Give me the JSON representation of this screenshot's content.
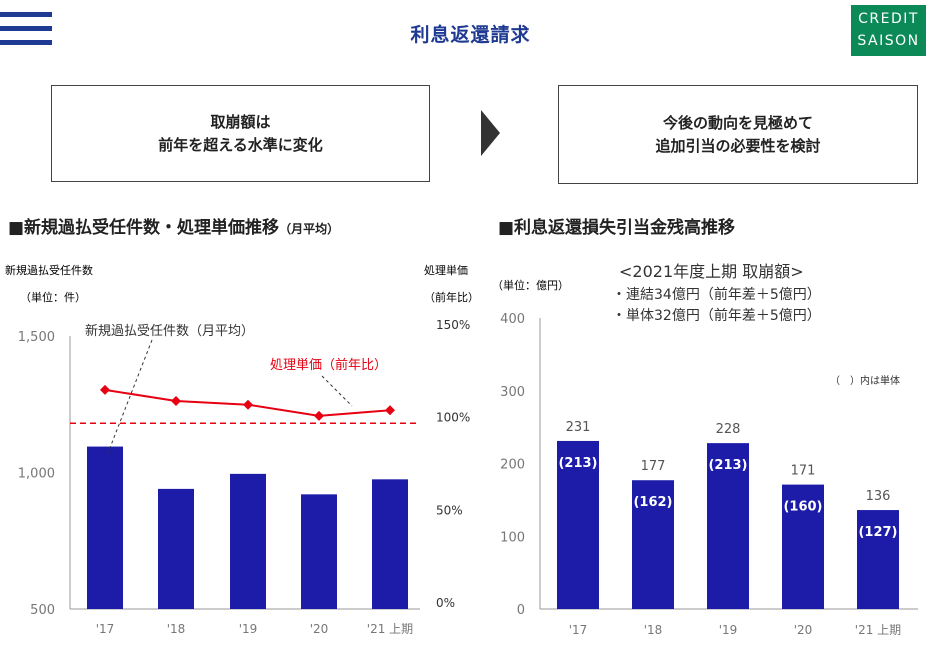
{
  "header": {
    "title": "利息返還請求"
  },
  "logo": {
    "line1": "CREDIT",
    "line2": "SAISON"
  },
  "summary": {
    "left_line1": "取崩額は",
    "left_line2": "前年を超える水準に変化",
    "right_line1": "今後の動向を見極めて",
    "right_line2": "追加引当の必要性を検討"
  },
  "sections": {
    "left_title": "■新規過払受任件数・処理単価推移",
    "left_title_suffix": "（月平均）",
    "right_title": "■利息返還損失引当金残高推移"
  },
  "colors": {
    "brand": "#1f3a93",
    "bar": "#1c1ca8",
    "line": "#e60012",
    "logo_bg": "#0b8a57"
  },
  "chart_data": [
    {
      "type": "bar",
      "categories": [
        "'17",
        "'18",
        "'19",
        "'20",
        "'21 上期"
      ],
      "ylabel": "新規過払受任件数",
      "ylabel_unit": "（単位：件）",
      "ylim": [
        500,
        1500
      ],
      "yticks": [
        "1,500",
        "1,000",
        "500"
      ],
      "y2label": "処理単価",
      "y2label_unit": "（前年比）",
      "y2lim": [
        0,
        150
      ],
      "y2ticks": [
        "150%",
        "100%",
        "50%",
        "0%"
      ],
      "series": [
        {
          "name": "新規過払受任件数（月平均）",
          "type": "bar",
          "values": [
            1095,
            940,
            995,
            920,
            975
          ]
        },
        {
          "name": "処理単価（前年比）",
          "type": "line",
          "axis": "right",
          "values": [
            115,
            109,
            107,
            101,
            104
          ]
        }
      ],
      "reference_line": {
        "axis": "right",
        "value": 97,
        "style": "dashed"
      }
    },
    {
      "type": "bar",
      "categories": [
        "'17",
        "'18",
        "'19",
        "'20",
        "'21 上期"
      ],
      "ylabel": "（単位：億円）",
      "ylim": [
        0,
        400
      ],
      "yticks": [
        "400",
        "300",
        "200",
        "100",
        "0"
      ],
      "series": [
        {
          "name": "連結",
          "values": [
            231,
            177,
            228,
            171,
            136
          ]
        },
        {
          "name": "単体",
          "values": [
            213,
            162,
            213,
            160,
            127
          ]
        }
      ],
      "inner_labels": [
        "(213)",
        "(162)",
        "(213)",
        "(160)",
        "(127)"
      ],
      "outer_labels": [
        "231",
        "177",
        "228",
        "171",
        "136"
      ],
      "note": "（　）内は単体",
      "annotation": {
        "line1": "<2021年度上期 取崩額>",
        "line2": "・連結34億円（前年差＋5億円）",
        "line3": "・単体32億円（前年差＋5億円）"
      }
    }
  ]
}
